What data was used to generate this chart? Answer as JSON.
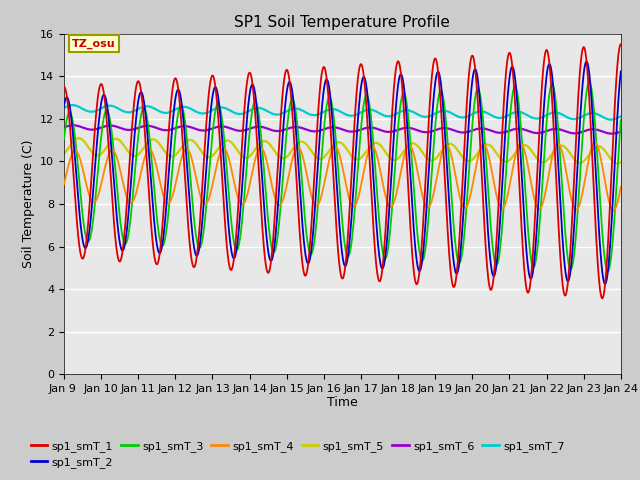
{
  "title": "SP1 Soil Temperature Profile",
  "xlabel": "Time",
  "ylabel": "Soil Temperature (C)",
  "ylim": [
    0,
    16
  ],
  "yticks": [
    0,
    2,
    4,
    6,
    8,
    10,
    12,
    14,
    16
  ],
  "legend_labels": [
    "sp1_smT_1",
    "sp1_smT_2",
    "sp1_smT_3",
    "sp1_smT_4",
    "sp1_smT_5",
    "sp1_smT_6",
    "sp1_smT_7"
  ],
  "colors": [
    "#dd0000",
    "#0000cc",
    "#00cc00",
    "#ff8800",
    "#cccc00",
    "#9900cc",
    "#00cccc"
  ],
  "tz_label": "TZ_osu",
  "bg_axes": "#e8e8e8",
  "bg_fig": "#cccccc",
  "xtick_labels": [
    "Jan 9 ",
    "Jan 10",
    "Jan 11",
    "Jan 12",
    "Jan 13",
    "Jan 14",
    "Jan 15",
    "Jan 16",
    "Jan 17",
    "Jan 18",
    "Jan 19",
    "Jan 20",
    "Jan 21",
    "Jan 22",
    "Jan 23",
    "Jan 24"
  ]
}
